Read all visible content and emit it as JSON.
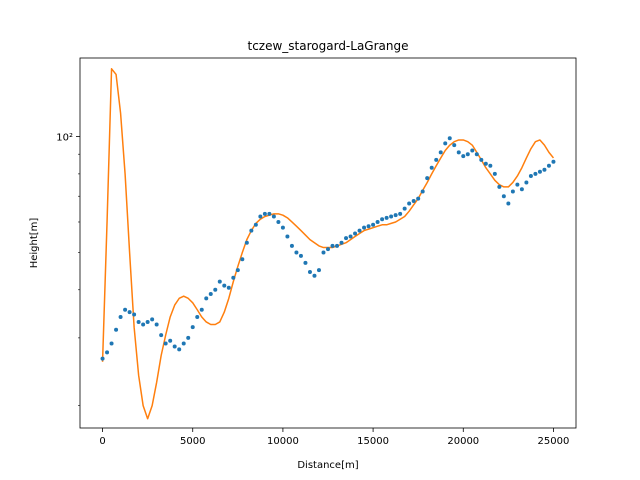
{
  "chart_data": {
    "type": "scatter",
    "title": "tczew_starogard-LaGrange",
    "xlabel": "Distance[m]",
    "ylabel": "Height[m]",
    "xlim": [
      -1250,
      26250
    ],
    "ylim": [
      17.5,
      160
    ],
    "y_scale": "log",
    "grid": false,
    "legend": "none",
    "x_ticks": [
      0,
      5000,
      10000,
      15000,
      20000,
      25000
    ],
    "y_ticks": [
      100
    ],
    "y_tick_labels": [
      "10²"
    ],
    "colors": {
      "points": "#1f77b4",
      "curve": "#ff7f0e"
    },
    "series": [
      {
        "kind": "scatter",
        "x": [
          0,
          250,
          500,
          750,
          1000,
          1250,
          1500,
          1750,
          2000,
          2250,
          2500,
          2750,
          3000,
          3250,
          3500,
          3750,
          4000,
          4250,
          4500,
          4750,
          5000,
          5250,
          5500,
          5750,
          6000,
          6250,
          6500,
          6750,
          7000,
          7250,
          7500,
          7750,
          8000,
          8250,
          8500,
          8750,
          9000,
          9250,
          9500,
          9750,
          10000,
          10250,
          10500,
          10750,
          11000,
          11250,
          11500,
          11750,
          12000,
          12250,
          12500,
          12750,
          13000,
          13250,
          13500,
          13750,
          14000,
          14250,
          14500,
          14750,
          15000,
          15250,
          15500,
          15750,
          16000,
          16250,
          16500,
          16750,
          17000,
          17250,
          17500,
          17750,
          18000,
          18250,
          18500,
          18750,
          19000,
          19250,
          19500,
          19750,
          20000,
          20250,
          20500,
          20750,
          21000,
          21250,
          21500,
          21750,
          22000,
          22250,
          22500,
          22750,
          23000,
          23250,
          23500,
          23750,
          24000,
          24250,
          24500,
          24750,
          25000
        ],
        "y": [
          26.5,
          27.5,
          29,
          31.5,
          34,
          35.5,
          35,
          34.5,
          33,
          32.5,
          33,
          33.5,
          32.5,
          30.5,
          29,
          29.5,
          28.5,
          28,
          29,
          30,
          32,
          34,
          35.5,
          38,
          39,
          40,
          42,
          41,
          40.5,
          43,
          45,
          48,
          53,
          57,
          59,
          62,
          63,
          63,
          62,
          60,
          58,
          55,
          52,
          50,
          49,
          47,
          44.5,
          43.5,
          45,
          50,
          51,
          52,
          52,
          53,
          54.5,
          55,
          56,
          57,
          58,
          58.5,
          59,
          60,
          61,
          61.5,
          62,
          62.5,
          63,
          65,
          67,
          68,
          69,
          72,
          78,
          83,
          87,
          91,
          96,
          99,
          95,
          91,
          89,
          90,
          92,
          90,
          87,
          85,
          84,
          80,
          74,
          70,
          67,
          72,
          75,
          73,
          76,
          79,
          80,
          81,
          82,
          84,
          86
        ]
      },
      {
        "kind": "line",
        "x": [
          0,
          250,
          500,
          750,
          1000,
          1250,
          1500,
          1750,
          2000,
          2250,
          2500,
          2750,
          3000,
          3250,
          3500,
          3750,
          4000,
          4250,
          4500,
          4750,
          5000,
          5250,
          5500,
          5750,
          6000,
          6250,
          6500,
          6750,
          7000,
          7250,
          7500,
          7750,
          8000,
          8250,
          8500,
          8750,
          9000,
          9250,
          9500,
          9750,
          10000,
          10250,
          10500,
          10750,
          11000,
          11250,
          11500,
          11750,
          12000,
          12250,
          12500,
          12750,
          13000,
          13250,
          13500,
          13750,
          14000,
          14250,
          14500,
          14750,
          15000,
          15250,
          15500,
          15750,
          16000,
          16250,
          16500,
          16750,
          17000,
          17250,
          17500,
          17750,
          18000,
          18250,
          18500,
          18750,
          19000,
          19250,
          19500,
          19750,
          20000,
          20250,
          20500,
          20750,
          21000,
          21250,
          21500,
          21750,
          22000,
          22250,
          22500,
          22750,
          23000,
          23250,
          23500,
          23750,
          24000,
          24250,
          24500,
          24750,
          25000
        ],
        "y": [
          26,
          60,
          150,
          145,
          115,
          80,
          50,
          32,
          24,
          20,
          18.5,
          20,
          23,
          27,
          30.5,
          34,
          36.5,
          38,
          38.5,
          38,
          37,
          35.5,
          34,
          33,
          32.5,
          32.5,
          33,
          35,
          38,
          42,
          46,
          50,
          54,
          57,
          59.5,
          61,
          62,
          62.5,
          63,
          63,
          62.5,
          61.5,
          60,
          58.5,
          57,
          55.5,
          54,
          53,
          52,
          51.5,
          51.5,
          51.5,
          52,
          52.5,
          53,
          54,
          55,
          56,
          57,
          57.5,
          58,
          58.5,
          59,
          59,
          59.5,
          60,
          61,
          62,
          64,
          66.5,
          69,
          72.5,
          76,
          80,
          84,
          88,
          92,
          95,
          97,
          98,
          98,
          97,
          95,
          91,
          87,
          83,
          80,
          77,
          75,
          74,
          74,
          76,
          79,
          83,
          88,
          93,
          97,
          98,
          95,
          91,
          88
        ]
      }
    ]
  }
}
